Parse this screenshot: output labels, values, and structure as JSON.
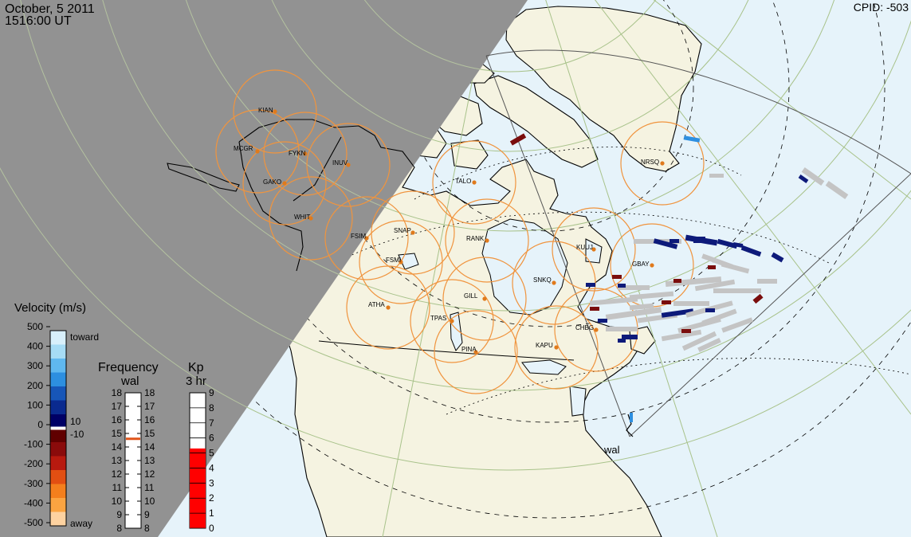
{
  "header": {
    "date": "October, 5 2011",
    "time": "1516:00 UT",
    "cpid": "CPID:  -503"
  },
  "colors": {
    "night": "#929292",
    "ocean": "#e6f3fa",
    "land": "#f5f3e1",
    "fov_circle": "#f0943e",
    "station_dot": "#e07a1c",
    "grid_line": "#a8c28a"
  },
  "stations": [
    {
      "code": "KIAN"
    },
    {
      "code": "MCGR"
    },
    {
      "code": "FYKN"
    },
    {
      "code": "INUV"
    },
    {
      "code": "GAKO"
    },
    {
      "code": "WHIT"
    },
    {
      "code": "FSIM"
    },
    {
      "code": "SNAP"
    },
    {
      "code": "FSMI"
    },
    {
      "code": "RANK"
    },
    {
      "code": "TALO"
    },
    {
      "code": "NRSQ"
    },
    {
      "code": "KUUJ"
    },
    {
      "code": "GBAY"
    },
    {
      "code": "SNKQ"
    },
    {
      "code": "GILL"
    },
    {
      "code": "ATHA"
    },
    {
      "code": "TPAS"
    },
    {
      "code": "CHBG"
    },
    {
      "code": "KAPU"
    },
    {
      "code": "PINA"
    }
  ],
  "radar_label": "wal",
  "velocity_scale": {
    "title": "Velocity (m/s)",
    "ticks": [
      "500",
      "400",
      "300",
      "200",
      "100",
      "0",
      "-100",
      "-200",
      "-300",
      "-400",
      "-500"
    ],
    "toward_label": "toward",
    "away_label": "away",
    "pos_threshold": "10",
    "neg_threshold": "-10",
    "colors": [
      "#d8f0fb",
      "#a6dcf5",
      "#5fb8ef",
      "#2d8fe0",
      "#1756b8",
      "#0a2a8f",
      "#000066",
      "#600000",
      "#8a0b0b",
      "#b81a0f",
      "#e24f12",
      "#f47f1d",
      "#fba441",
      "#fdd2a0"
    ]
  },
  "frequency_scale": {
    "title": "Frequency",
    "subtitle": "wal",
    "ticks": [
      "18",
      "17",
      "16",
      "15",
      "14",
      "13",
      "12",
      "11",
      "10",
      "9",
      "8"
    ],
    "marker_value": 14.6
  },
  "kp_scale": {
    "title": "Kp",
    "subtitle": "3 hr",
    "ticks": [
      "9",
      "8",
      "7",
      "6",
      "5",
      "4",
      "3",
      "2",
      "1",
      "0"
    ],
    "value": 5.3
  }
}
